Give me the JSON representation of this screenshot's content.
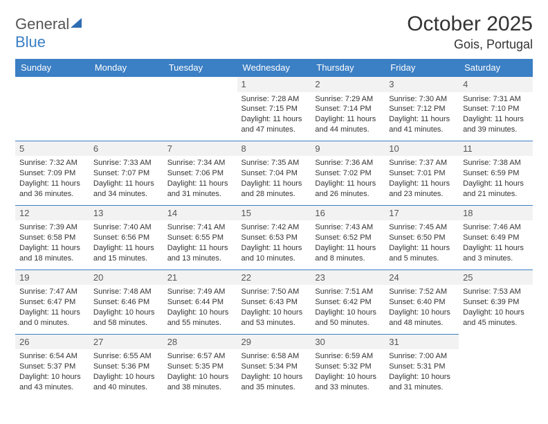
{
  "logo": {
    "text_gray": "General",
    "text_blue": "Blue"
  },
  "title": "October 2025",
  "location": "Gois, Portugal",
  "colors": {
    "header_bg": "#3b7fc4",
    "header_text": "#ffffff",
    "cell_border": "#3b7fc4",
    "daynum_bg": "#f2f2f2",
    "text": "#333333"
  },
  "weekdays": [
    "Sunday",
    "Monday",
    "Tuesday",
    "Wednesday",
    "Thursday",
    "Friday",
    "Saturday"
  ],
  "weeks": [
    [
      null,
      null,
      null,
      {
        "n": "1",
        "sr": "Sunrise: 7:28 AM",
        "ss": "Sunset: 7:15 PM",
        "d1": "Daylight: 11 hours",
        "d2": "and 47 minutes."
      },
      {
        "n": "2",
        "sr": "Sunrise: 7:29 AM",
        "ss": "Sunset: 7:14 PM",
        "d1": "Daylight: 11 hours",
        "d2": "and 44 minutes."
      },
      {
        "n": "3",
        "sr": "Sunrise: 7:30 AM",
        "ss": "Sunset: 7:12 PM",
        "d1": "Daylight: 11 hours",
        "d2": "and 41 minutes."
      },
      {
        "n": "4",
        "sr": "Sunrise: 7:31 AM",
        "ss": "Sunset: 7:10 PM",
        "d1": "Daylight: 11 hours",
        "d2": "and 39 minutes."
      }
    ],
    [
      {
        "n": "5",
        "sr": "Sunrise: 7:32 AM",
        "ss": "Sunset: 7:09 PM",
        "d1": "Daylight: 11 hours",
        "d2": "and 36 minutes."
      },
      {
        "n": "6",
        "sr": "Sunrise: 7:33 AM",
        "ss": "Sunset: 7:07 PM",
        "d1": "Daylight: 11 hours",
        "d2": "and 34 minutes."
      },
      {
        "n": "7",
        "sr": "Sunrise: 7:34 AM",
        "ss": "Sunset: 7:06 PM",
        "d1": "Daylight: 11 hours",
        "d2": "and 31 minutes."
      },
      {
        "n": "8",
        "sr": "Sunrise: 7:35 AM",
        "ss": "Sunset: 7:04 PM",
        "d1": "Daylight: 11 hours",
        "d2": "and 28 minutes."
      },
      {
        "n": "9",
        "sr": "Sunrise: 7:36 AM",
        "ss": "Sunset: 7:02 PM",
        "d1": "Daylight: 11 hours",
        "d2": "and 26 minutes."
      },
      {
        "n": "10",
        "sr": "Sunrise: 7:37 AM",
        "ss": "Sunset: 7:01 PM",
        "d1": "Daylight: 11 hours",
        "d2": "and 23 minutes."
      },
      {
        "n": "11",
        "sr": "Sunrise: 7:38 AM",
        "ss": "Sunset: 6:59 PM",
        "d1": "Daylight: 11 hours",
        "d2": "and 21 minutes."
      }
    ],
    [
      {
        "n": "12",
        "sr": "Sunrise: 7:39 AM",
        "ss": "Sunset: 6:58 PM",
        "d1": "Daylight: 11 hours",
        "d2": "and 18 minutes."
      },
      {
        "n": "13",
        "sr": "Sunrise: 7:40 AM",
        "ss": "Sunset: 6:56 PM",
        "d1": "Daylight: 11 hours",
        "d2": "and 15 minutes."
      },
      {
        "n": "14",
        "sr": "Sunrise: 7:41 AM",
        "ss": "Sunset: 6:55 PM",
        "d1": "Daylight: 11 hours",
        "d2": "and 13 minutes."
      },
      {
        "n": "15",
        "sr": "Sunrise: 7:42 AM",
        "ss": "Sunset: 6:53 PM",
        "d1": "Daylight: 11 hours",
        "d2": "and 10 minutes."
      },
      {
        "n": "16",
        "sr": "Sunrise: 7:43 AM",
        "ss": "Sunset: 6:52 PM",
        "d1": "Daylight: 11 hours",
        "d2": "and 8 minutes."
      },
      {
        "n": "17",
        "sr": "Sunrise: 7:45 AM",
        "ss": "Sunset: 6:50 PM",
        "d1": "Daylight: 11 hours",
        "d2": "and 5 minutes."
      },
      {
        "n": "18",
        "sr": "Sunrise: 7:46 AM",
        "ss": "Sunset: 6:49 PM",
        "d1": "Daylight: 11 hours",
        "d2": "and 3 minutes."
      }
    ],
    [
      {
        "n": "19",
        "sr": "Sunrise: 7:47 AM",
        "ss": "Sunset: 6:47 PM",
        "d1": "Daylight: 11 hours",
        "d2": "and 0 minutes."
      },
      {
        "n": "20",
        "sr": "Sunrise: 7:48 AM",
        "ss": "Sunset: 6:46 PM",
        "d1": "Daylight: 10 hours",
        "d2": "and 58 minutes."
      },
      {
        "n": "21",
        "sr": "Sunrise: 7:49 AM",
        "ss": "Sunset: 6:44 PM",
        "d1": "Daylight: 10 hours",
        "d2": "and 55 minutes."
      },
      {
        "n": "22",
        "sr": "Sunrise: 7:50 AM",
        "ss": "Sunset: 6:43 PM",
        "d1": "Daylight: 10 hours",
        "d2": "and 53 minutes."
      },
      {
        "n": "23",
        "sr": "Sunrise: 7:51 AM",
        "ss": "Sunset: 6:42 PM",
        "d1": "Daylight: 10 hours",
        "d2": "and 50 minutes."
      },
      {
        "n": "24",
        "sr": "Sunrise: 7:52 AM",
        "ss": "Sunset: 6:40 PM",
        "d1": "Daylight: 10 hours",
        "d2": "and 48 minutes."
      },
      {
        "n": "25",
        "sr": "Sunrise: 7:53 AM",
        "ss": "Sunset: 6:39 PM",
        "d1": "Daylight: 10 hours",
        "d2": "and 45 minutes."
      }
    ],
    [
      {
        "n": "26",
        "sr": "Sunrise: 6:54 AM",
        "ss": "Sunset: 5:37 PM",
        "d1": "Daylight: 10 hours",
        "d2": "and 43 minutes."
      },
      {
        "n": "27",
        "sr": "Sunrise: 6:55 AM",
        "ss": "Sunset: 5:36 PM",
        "d1": "Daylight: 10 hours",
        "d2": "and 40 minutes."
      },
      {
        "n": "28",
        "sr": "Sunrise: 6:57 AM",
        "ss": "Sunset: 5:35 PM",
        "d1": "Daylight: 10 hours",
        "d2": "and 38 minutes."
      },
      {
        "n": "29",
        "sr": "Sunrise: 6:58 AM",
        "ss": "Sunset: 5:34 PM",
        "d1": "Daylight: 10 hours",
        "d2": "and 35 minutes."
      },
      {
        "n": "30",
        "sr": "Sunrise: 6:59 AM",
        "ss": "Sunset: 5:32 PM",
        "d1": "Daylight: 10 hours",
        "d2": "and 33 minutes."
      },
      {
        "n": "31",
        "sr": "Sunrise: 7:00 AM",
        "ss": "Sunset: 5:31 PM",
        "d1": "Daylight: 10 hours",
        "d2": "and 31 minutes."
      },
      null
    ]
  ]
}
